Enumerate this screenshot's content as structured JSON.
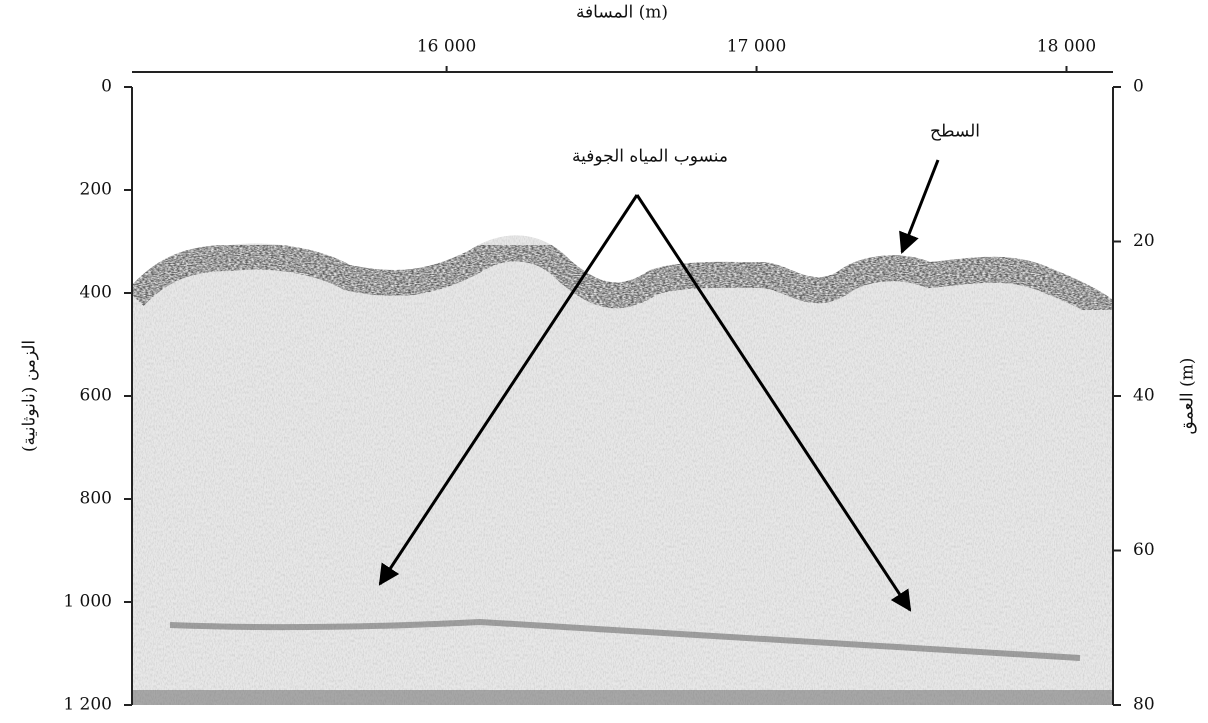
{
  "chart_data": {
    "type": "radargram",
    "x_label": "المسافة (m)",
    "xlim": [
      14985,
      18150
    ],
    "xticks": [
      {
        "value": 16000,
        "label": "16 000"
      },
      {
        "value": 17000,
        "label": "17 000"
      },
      {
        "value": 18000,
        "label": "18 000"
      }
    ],
    "y_label": "الزمن (نانوثانية)",
    "ylim": [
      0,
      1200
    ],
    "y_inverted": true,
    "yticks": [
      0,
      200,
      400,
      600,
      800,
      {
        "value": 1000,
        "label": "1 000"
      },
      {
        "value": 1200,
        "label": "1 200"
      }
    ],
    "y2_label": "العمق (m)",
    "y2lim": [
      0,
      80
    ],
    "y2ticks": [
      0,
      20,
      40,
      60,
      80
    ],
    "annotations": [
      "منسوب المياه الجوفية",
      "السطح"
    ]
  }
}
